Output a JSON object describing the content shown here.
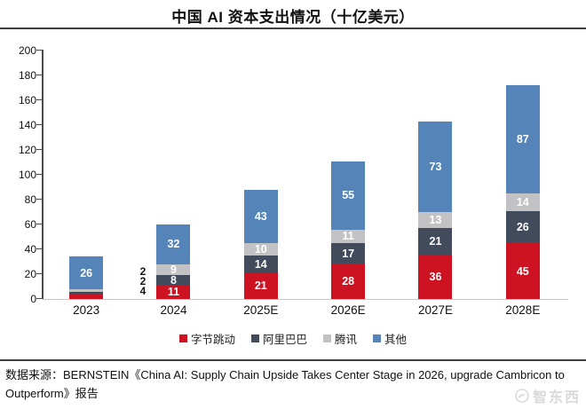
{
  "page": {
    "title": "中国 AI 资本支出情况（十亿美元）",
    "source_text": "数据来源：BERNSTEIN《China AI: Supply Chain Upside Takes Center Stage in 2026, upgrade Cambricon to Outperform》报告",
    "watermark": "智东西"
  },
  "chart_data": {
    "type": "bar",
    "stacked": true,
    "title": "中国 AI 资本支出情况（十亿美元）",
    "categories": [
      "2023",
      "2024",
      "2025E",
      "2026E",
      "2027E",
      "2028E"
    ],
    "series": [
      {
        "name": "字节跳动",
        "color": "#cd1222",
        "values": [
          4,
          11,
          21,
          28,
          36,
          45
        ]
      },
      {
        "name": "阿里巴巴",
        "color": "#414b5c",
        "values": [
          2,
          8,
          14,
          17,
          21,
          26
        ]
      },
      {
        "name": "腾讯",
        "color": "#c2c2c4",
        "values": [
          2,
          9,
          10,
          11,
          13,
          14
        ]
      },
      {
        "name": "其他",
        "color": "#5585b8",
        "values": [
          26,
          32,
          43,
          55,
          73,
          87
        ]
      }
    ],
    "totals": [
      34,
      60,
      88,
      111,
      143,
      172
    ],
    "ylim": [
      0,
      200
    ],
    "ytick_step": 20,
    "grid": false,
    "legend_position": "bottom",
    "outside_labels": {
      "category": "2023",
      "values_top_to_bottom": [
        "2",
        "2",
        "4"
      ]
    },
    "axis_color": "#4a4a4a",
    "baseline_color": "#c9c9c9"
  }
}
